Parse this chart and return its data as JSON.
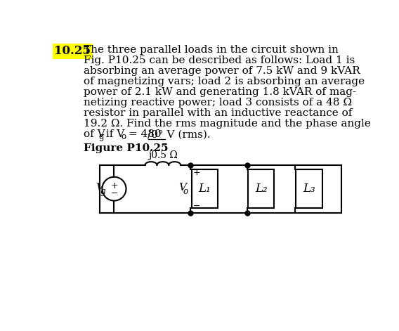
{
  "problem_number": "10.25",
  "problem_number_bg": "#FFFF00",
  "text_lines": [
    "The three parallel loads in the circuit shown in",
    "Fig. P10.25 can be described as follows: Load 1 is",
    "absorbing an average power of 7.5 kW and 9 kVAR",
    "of magnetizing vars; load 2 is absorbing an average",
    "power of 2.1 kW and generating 1.8 kVAR of mag-",
    "netizing reactive power; load 3 consists of a 48 Ω",
    "resistor in parallel with an inductive reactance of",
    "19.2 Ω. Find the rms magnitude and the phase angle"
  ],
  "last_line_prefix": "of V",
  "last_line_Vg_sub": "g",
  "last_line_mid": " if V",
  "last_line_Vo_sub": "o",
  "last_line_equals": " = 480",
  "last_line_angle": "/0° V (rms).",
  "figure_label": "Figure P10.25",
  "inductor_label": "j0.5 Ω",
  "bg_color": "#ffffff",
  "text_color": "#000000",
  "line_color": "#000000",
  "font_size_text": 11.0,
  "font_size_sub": 8.5,
  "font_size_problem": 12.0,
  "font_size_circuit": 11.0,
  "font_size_circuit_sub": 8.5,
  "font_size_inductor": 10.0
}
